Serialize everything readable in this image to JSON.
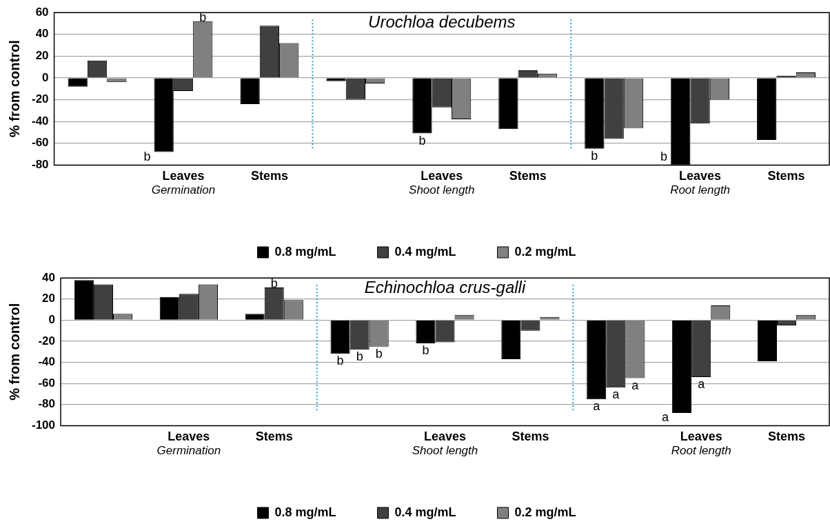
{
  "chart_data": [
    {
      "type": "bar",
      "title": "Urochloa decubems",
      "ylabel": "% from control",
      "categories": [
        null,
        "Leaves",
        "Stems",
        null,
        "Leaves",
        "Stems",
        null,
        "Leaves",
        "Stems"
      ],
      "series": [
        {
          "name": "0.8 mg/mL",
          "color": "#000000",
          "values": [
            -8,
            -68,
            -24,
            -3,
            -51,
            -47,
            -65,
            -80,
            -57
          ],
          "value_labels": [
            null,
            "b",
            null,
            null,
            "b",
            null,
            "b",
            "b",
            null
          ]
        },
        {
          "name": "0.4 mg/mL",
          "color": "#404040",
          "values": [
            16,
            -12,
            48,
            -20,
            -27,
            7,
            -56,
            -42,
            2
          ]
        },
        {
          "name": "0.2 mg/mL",
          "color": "#808080",
          "values": [
            -4,
            52,
            32,
            -5,
            -38,
            4,
            -46,
            -20,
            5
          ],
          "value_labels": [
            null,
            "b",
            null,
            null,
            null,
            null,
            null,
            null,
            null
          ]
        }
      ],
      "annotations": [
        "Germination",
        "Shoot length",
        "Root length"
      ],
      "ylim": [
        -80,
        60
      ],
      "yticks": [
        -80,
        -60,
        -40,
        -20,
        0,
        20,
        40,
        60
      ],
      "grid": "y",
      "legend": "bottom"
    },
    {
      "type": "bar",
      "title": "Echinochloa crus-galli",
      "ylabel": "% from control",
      "categories": [
        null,
        "Leaves",
        "Stems",
        null,
        "Leaves",
        "Stems",
        null,
        "Leaves",
        "Stems"
      ],
      "series": [
        {
          "name": "0.8 mg/mL",
          "color": "#000000",
          "values": [
            38,
            22,
            6,
            -32,
            -22,
            -37,
            -75,
            -88,
            -39
          ],
          "value_labels": [
            null,
            null,
            null,
            "b",
            "b",
            null,
            "a",
            "a",
            null
          ]
        },
        {
          "name": "0.4 mg/mL",
          "color": "#404040",
          "values": [
            34,
            25,
            31,
            -28,
            -21,
            -10,
            -64,
            -54,
            -5
          ],
          "value_labels": [
            null,
            null,
            "b",
            "b",
            null,
            null,
            "a",
            "a",
            null
          ]
        },
        {
          "name": "0.2 mg/mL",
          "color": "#808080",
          "values": [
            6,
            34,
            19,
            -25,
            5,
            3,
            -55,
            14,
            5
          ],
          "value_labels": [
            null,
            null,
            null,
            "b",
            null,
            null,
            "a",
            null,
            null
          ]
        }
      ],
      "annotations": [
        "Germination",
        "Shoot length",
        "Root length"
      ],
      "ylim": [
        -100,
        40
      ],
      "yticks": [
        -100,
        -80,
        -60,
        -40,
        -20,
        0,
        20,
        40
      ],
      "grid": "y",
      "legend": "bottom"
    }
  ]
}
